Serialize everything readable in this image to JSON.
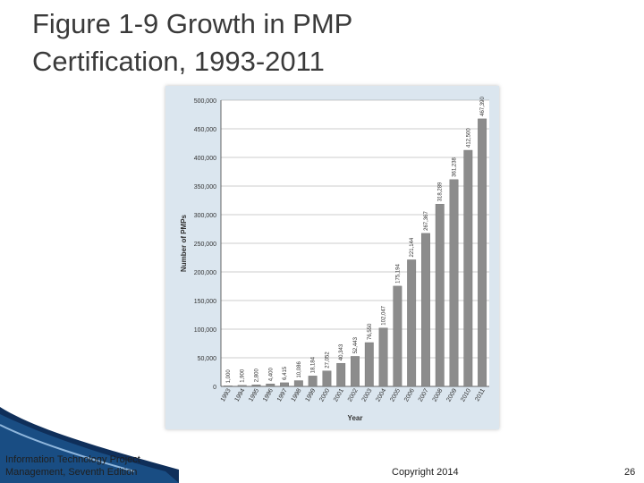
{
  "slide": {
    "title": "Figure 1-9 Growth in PMP\nCertification, 1993-2011",
    "footer_left": "Information Technology Project Management, Seventh Edition",
    "footer_center": "Copyright 2014",
    "page_number": "26"
  },
  "colors": {
    "panel_background": "#dbe6ef",
    "plot_background": "#ffffff",
    "bar_fill": "#8c8c8c",
    "swoosh": "#0f2f5a"
  },
  "chart_data": {
    "type": "bar",
    "xlabel": "Year",
    "ylabel": "Number of PMPs",
    "ylim": [
      0,
      500000
    ],
    "grid": true,
    "y_ticks": [
      0,
      50000,
      100000,
      150000,
      200000,
      250000,
      300000,
      350000,
      400000,
      450000,
      500000
    ],
    "y_tick_labels": [
      "0",
      "50,000",
      "100,000",
      "150,000",
      "200,000",
      "250,000",
      "300,000",
      "350,000",
      "400,000",
      "450,000",
      "500,000"
    ],
    "categories": [
      "1993",
      "1994",
      "1995",
      "1996",
      "1997",
      "1998",
      "1999",
      "2000",
      "2001",
      "2002",
      "2003",
      "2004",
      "2005",
      "2006",
      "2007",
      "2008",
      "2009",
      "2010",
      "2011"
    ],
    "values": [
      1000,
      1900,
      2800,
      4400,
      6415,
      10086,
      18184,
      27052,
      40343,
      52443,
      76550,
      102047,
      175194,
      221144,
      267367,
      318289,
      361238,
      412500,
      467390
    ],
    "data_labels": [
      "1,000",
      "1,900",
      "2,800",
      "4,400",
      "6,415",
      "10,086",
      "18,184",
      "27,052",
      "40,343",
      "52,443",
      "76,550",
      "102,047",
      "175,194",
      "221,144",
      "267,367",
      "318,289",
      "361,238",
      "412,500",
      "467,390"
    ]
  }
}
